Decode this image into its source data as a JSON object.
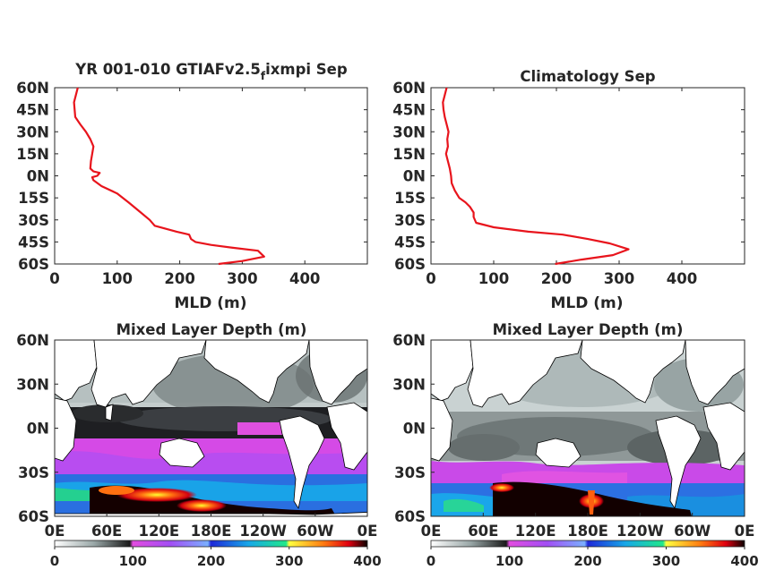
{
  "chart_data": [
    {
      "type": "line",
      "title_main": "YR 001-010 GTIAFv2.5",
      "title_sub": "f",
      "title_tail": "ixmpi Sep",
      "xlabel": "MLD (m)",
      "xlim": [
        0,
        500
      ],
      "xticks": [
        "0",
        "100",
        "200",
        "300",
        "400"
      ],
      "ylim": [
        -60,
        60
      ],
      "yticks": [
        "60N",
        "45N",
        "30N",
        "15N",
        "0N",
        "15S",
        "30S",
        "45S",
        "60S"
      ],
      "series": [
        {
          "color": "#e8141c",
          "points": [
            [
              37,
              60
            ],
            [
              34,
              55
            ],
            [
              31,
              50
            ],
            [
              32,
              45
            ],
            [
              33,
              40
            ],
            [
              41,
              35
            ],
            [
              50,
              30
            ],
            [
              57,
              25
            ],
            [
              62,
              20
            ],
            [
              60,
              15
            ],
            [
              58,
              10
            ],
            [
              57,
              5
            ],
            [
              62,
              3
            ],
            [
              72,
              2
            ],
            [
              68,
              0
            ],
            [
              60,
              -1
            ],
            [
              62,
              -3
            ],
            [
              75,
              -7
            ],
            [
              100,
              -12
            ],
            [
              118,
              -18
            ],
            [
              135,
              -24
            ],
            [
              152,
              -30
            ],
            [
              160,
              -34
            ],
            [
              195,
              -38
            ],
            [
              215,
              -40
            ],
            [
              218,
              -43
            ],
            [
              225,
              -45
            ],
            [
              250,
              -47
            ],
            [
              285,
              -49
            ],
            [
              325,
              -51
            ],
            [
              335,
              -55
            ],
            [
              300,
              -58
            ],
            [
              262,
              -60
            ]
          ]
        }
      ]
    },
    {
      "type": "line",
      "title": "Climatology Sep",
      "xlabel": "MLD (m)",
      "xlim": [
        0,
        500
      ],
      "xticks": [
        "0",
        "100",
        "200",
        "300",
        "400"
      ],
      "ylim": [
        -60,
        60
      ],
      "yticks": [
        "60N",
        "45N",
        "30N",
        "15N",
        "0N",
        "15S",
        "30S",
        "45S",
        "60S"
      ],
      "series": [
        {
          "color": "#e8141c",
          "points": [
            [
              25,
              60
            ],
            [
              22,
              55
            ],
            [
              19,
              50
            ],
            [
              20,
              45
            ],
            [
              22,
              40
            ],
            [
              25,
              35
            ],
            [
              28,
              30
            ],
            [
              26,
              25
            ],
            [
              27,
              20
            ],
            [
              24,
              15
            ],
            [
              27,
              10
            ],
            [
              30,
              5
            ],
            [
              32,
              0
            ],
            [
              33,
              -5
            ],
            [
              38,
              -10
            ],
            [
              45,
              -15
            ],
            [
              55,
              -18
            ],
            [
              62,
              -21
            ],
            [
              68,
              -25
            ],
            [
              68,
              -28
            ],
            [
              72,
              -32
            ],
            [
              100,
              -35
            ],
            [
              155,
              -38
            ],
            [
              210,
              -40
            ],
            [
              250,
              -43
            ],
            [
              285,
              -46
            ],
            [
              315,
              -50
            ],
            [
              290,
              -54
            ],
            [
              240,
              -57
            ],
            [
              198,
              -60
            ]
          ]
        }
      ]
    },
    {
      "type": "heatmap",
      "title": "Mixed Layer Depth (m)",
      "xticks": [
        "0E",
        "60E",
        "120E",
        "180E",
        "120W",
        "60W",
        "0E"
      ],
      "yticks": [
        "60N",
        "30N",
        "0N",
        "30S",
        "60S"
      ],
      "colorbar": {
        "range": [
          0,
          400
        ],
        "ticks": [
          "0",
          "100",
          "200",
          "300",
          "400"
        ]
      }
    },
    {
      "type": "heatmap",
      "title": "Mixed Layer Depth (m)",
      "xticks": [
        "0E",
        "60E",
        "120E",
        "180E",
        "120W",
        "60W",
        "0E"
      ],
      "yticks": [
        "60N",
        "30N",
        "0N",
        "30S",
        "60S"
      ],
      "colorbar": {
        "range": [
          0,
          400
        ],
        "ticks": [
          "0",
          "100",
          "200",
          "300",
          "400"
        ]
      }
    }
  ]
}
